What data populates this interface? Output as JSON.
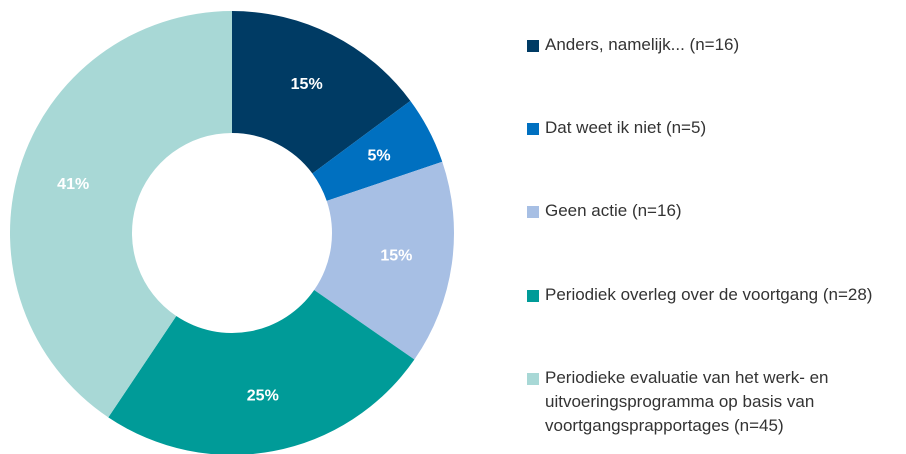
{
  "chart_data": {
    "type": "donut",
    "categories": [
      "Anders, namelijk... (n=16)",
      "Dat weet ik niet (n=5)",
      "Geen actie (n=16)",
      "Periodiek overleg over de voortgang (n=28)",
      "Periodieke evaluatie van het werk- en uitvoeringsprogramma op basis van voortgangsprapportages (n=45)"
    ],
    "values": [
      15,
      5,
      15,
      25,
      41
    ],
    "value_labels": [
      "15%",
      "5%",
      "15%",
      "25%",
      "41%"
    ],
    "colors": [
      "#003b64",
      "#0070c0",
      "#a7bfe4",
      "#009b98",
      "#a8d8d6"
    ],
    "legend": "right"
  }
}
